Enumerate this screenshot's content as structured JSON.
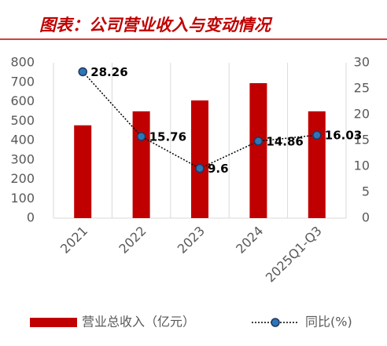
{
  "chart_data": {
    "type": "bar",
    "title": "图表：公司营业收入与变动情况",
    "categories": [
      "2021",
      "2022",
      "2023",
      "2024",
      "2025Q1-Q3"
    ],
    "series": [
      {
        "name": "营业总收入（亿元）",
        "color": "#c00000",
        "values": [
          478,
          550,
          606,
          695,
          550
        ]
      },
      {
        "name": "同比(%)",
        "color": "#2e75b6",
        "type": "line",
        "axis": "y2",
        "values": [
          28.26,
          15.76,
          9.6,
          14.86,
          16.03
        ]
      }
    ],
    "ylim": [
      0,
      800
    ],
    "yticks": [
      0,
      100,
      200,
      300,
      400,
      500,
      600,
      700,
      800
    ],
    "y2lim": [
      0,
      30
    ],
    "y2ticks": [
      0,
      5,
      10,
      15,
      20,
      25,
      30
    ],
    "legend": "bottom"
  }
}
